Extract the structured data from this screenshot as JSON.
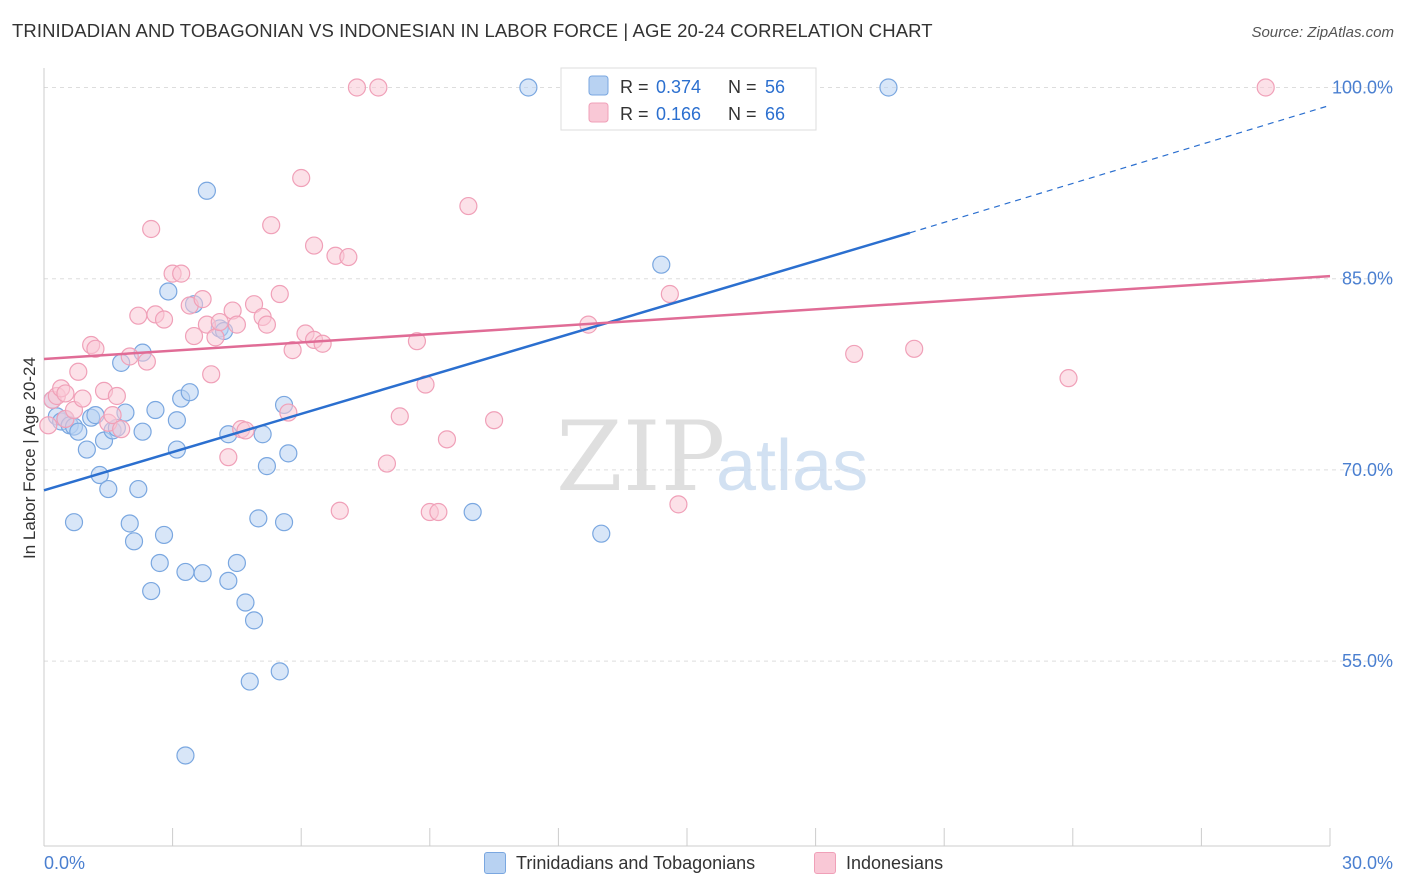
{
  "title": "TRINIDADIAN AND TOBAGONIAN VS INDONESIAN IN LABOR FORCE | AGE 20-24 CORRELATION CHART",
  "source": "Source: ZipAtlas.com",
  "watermark": {
    "zip": "ZIP",
    "atlas": "atlas"
  },
  "chart_data": {
    "type": "scatter",
    "ylabel": "In Labor Force | Age 20-24",
    "xlim": [
      0,
      30
    ],
    "ylim": [
      40.5,
      102
    ],
    "x_tick_labels": [
      {
        "value": 0,
        "label": "0.0%"
      },
      {
        "value": 30,
        "label": "30.0%"
      }
    ],
    "y_tick_labels": [
      {
        "value": 100,
        "label": "100.0%"
      },
      {
        "value": 85,
        "label": "85.0%"
      },
      {
        "value": 70,
        "label": "70.0%"
      },
      {
        "value": 55,
        "label": "55.0%"
      }
    ],
    "y_gridlines": [
      100,
      85,
      70,
      55
    ],
    "grid": true,
    "legend_position": "top-center",
    "series": [
      {
        "name": "Trinidadians and Tobagonians",
        "color": "#7aa7e0",
        "fill": "#b8d2f2",
        "trend_color": "#2b6fcf",
        "R": "0.374",
        "N": "56",
        "trend": {
          "x0": 0,
          "y0": 68.4,
          "x1": 20.2,
          "y1": 88.6,
          "dashed_to_x": 30,
          "dashed_to_y": 98.6
        },
        "points": [
          [
            0.2,
            75.5
          ],
          [
            0.3,
            74.2
          ],
          [
            0.4,
            73.8
          ],
          [
            0.5,
            74.0
          ],
          [
            0.6,
            73.5
          ],
          [
            0.7,
            73.4
          ],
          [
            0.8,
            73.0
          ],
          [
            1.0,
            71.6
          ],
          [
            1.1,
            74.1
          ],
          [
            1.2,
            74.3
          ],
          [
            1.3,
            69.6
          ],
          [
            1.4,
            72.3
          ],
          [
            1.5,
            68.5
          ],
          [
            1.6,
            73.1
          ],
          [
            1.7,
            73.3
          ],
          [
            1.8,
            78.4
          ],
          [
            1.9,
            74.5
          ],
          [
            2.0,
            65.8
          ],
          [
            2.1,
            64.4
          ],
          [
            2.3,
            79.2
          ],
          [
            2.2,
            68.5
          ],
          [
            2.3,
            73.0
          ],
          [
            2.5,
            60.5
          ],
          [
            2.6,
            74.7
          ],
          [
            2.7,
            62.7
          ],
          [
            2.8,
            64.9
          ],
          [
            2.9,
            84.0
          ],
          [
            3.1,
            73.9
          ],
          [
            3.1,
            71.6
          ],
          [
            3.2,
            75.6
          ],
          [
            3.4,
            76.1
          ],
          [
            3.5,
            83.0
          ],
          [
            3.3,
            47.6
          ],
          [
            3.3,
            62.0
          ],
          [
            3.7,
            61.9
          ],
          [
            3.8,
            91.9
          ],
          [
            4.1,
            81.1
          ],
          [
            4.2,
            80.9
          ],
          [
            4.3,
            61.3
          ],
          [
            4.3,
            72.8
          ],
          [
            4.5,
            62.7
          ],
          [
            4.7,
            59.6
          ],
          [
            4.9,
            58.2
          ],
          [
            4.8,
            53.4
          ],
          [
            5.0,
            66.2
          ],
          [
            5.1,
            72.8
          ],
          [
            5.2,
            70.3
          ],
          [
            5.5,
            54.2
          ],
          [
            5.6,
            75.1
          ],
          [
            5.7,
            71.3
          ],
          [
            5.6,
            65.9
          ],
          [
            0.7,
            65.9
          ],
          [
            10.0,
            66.7
          ],
          [
            11.3,
            100.0
          ],
          [
            13.0,
            65.0
          ],
          [
            14.4,
            86.1
          ],
          [
            19.7,
            100.0
          ]
        ]
      },
      {
        "name": "Indonesians",
        "color": "#f0a0b8",
        "fill": "#f9c8d6",
        "trend_color": "#e06c96",
        "R": "0.166",
        "N": "66",
        "trend": {
          "x0": 0,
          "y0": 78.7,
          "x1": 30,
          "y1": 85.2
        },
        "points": [
          [
            0.1,
            73.5
          ],
          [
            0.2,
            75.5
          ],
          [
            0.3,
            75.8
          ],
          [
            0.4,
            76.4
          ],
          [
            0.5,
            74.0
          ],
          [
            0.5,
            76.0
          ],
          [
            0.7,
            74.7
          ],
          [
            0.8,
            77.7
          ],
          [
            0.9,
            75.6
          ],
          [
            1.1,
            79.8
          ],
          [
            1.2,
            79.5
          ],
          [
            1.4,
            76.2
          ],
          [
            1.5,
            73.7
          ],
          [
            1.6,
            74.3
          ],
          [
            1.7,
            75.8
          ],
          [
            1.8,
            73.2
          ],
          [
            2.0,
            78.9
          ],
          [
            2.2,
            82.1
          ],
          [
            2.4,
            78.5
          ],
          [
            2.6,
            82.2
          ],
          [
            2.5,
            88.9
          ],
          [
            2.8,
            81.8
          ],
          [
            3.0,
            85.4
          ],
          [
            3.2,
            85.4
          ],
          [
            3.4,
            82.9
          ],
          [
            3.5,
            80.5
          ],
          [
            3.7,
            83.4
          ],
          [
            3.8,
            81.4
          ],
          [
            3.9,
            77.5
          ],
          [
            4.0,
            80.4
          ],
          [
            4.1,
            81.6
          ],
          [
            4.3,
            71.0
          ],
          [
            4.4,
            82.5
          ],
          [
            4.5,
            81.4
          ],
          [
            4.6,
            73.2
          ],
          [
            4.7,
            73.1
          ],
          [
            4.9,
            83.0
          ],
          [
            5.1,
            82.0
          ],
          [
            5.2,
            81.4
          ],
          [
            5.3,
            89.2
          ],
          [
            5.5,
            83.8
          ],
          [
            5.7,
            74.5
          ],
          [
            5.8,
            79.4
          ],
          [
            6.0,
            92.9
          ],
          [
            6.1,
            80.7
          ],
          [
            6.3,
            80.2
          ],
          [
            6.3,
            87.6
          ],
          [
            6.5,
            79.9
          ],
          [
            6.8,
            86.8
          ],
          [
            6.9,
            66.8
          ],
          [
            7.1,
            86.7
          ],
          [
            7.3,
            100.0
          ],
          [
            7.8,
            100.0
          ],
          [
            8.0,
            70.5
          ],
          [
            8.3,
            74.2
          ],
          [
            8.7,
            80.1
          ],
          [
            8.9,
            76.7
          ],
          [
            9.0,
            66.7
          ],
          [
            9.2,
            66.7
          ],
          [
            9.4,
            72.4
          ],
          [
            9.9,
            90.7
          ],
          [
            10.5,
            73.9
          ],
          [
            12.7,
            81.4
          ],
          [
            14.6,
            83.8
          ],
          [
            14.8,
            67.3
          ],
          [
            18.9,
            79.1
          ],
          [
            20.3,
            79.5
          ],
          [
            23.9,
            77.2
          ],
          [
            28.5,
            100.0
          ]
        ]
      }
    ]
  }
}
